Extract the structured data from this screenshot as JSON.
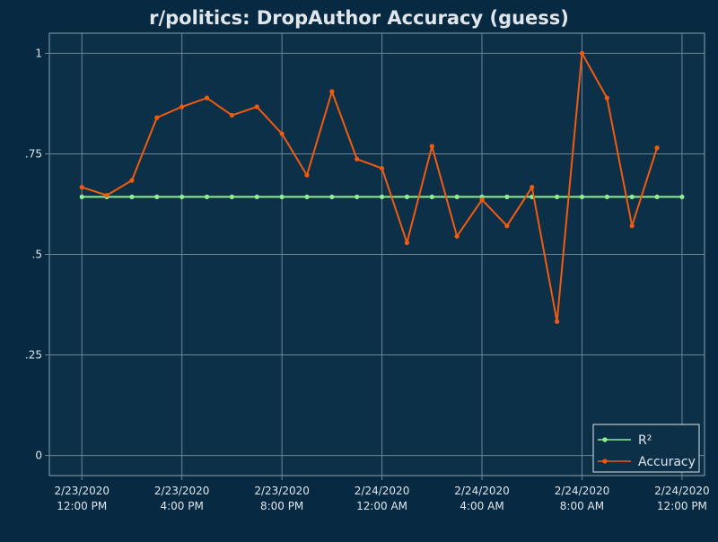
{
  "chart_data": {
    "type": "line",
    "title": "r/politics: DropAuthor Accuracy (guess)",
    "xlabel": "",
    "ylabel": "",
    "x_ticks": [
      {
        "line1": "2/23/2020",
        "line2": "12:00 PM"
      },
      {
        "line1": "2/23/2020",
        "line2": "4:00 PM"
      },
      {
        "line1": "2/23/2020",
        "line2": "8:00 PM"
      },
      {
        "line1": "2/24/2020",
        "line2": "12:00 AM"
      },
      {
        "line1": "2/24/2020",
        "line2": "4:00 AM"
      },
      {
        "line1": "2/24/2020",
        "line2": "8:00 AM"
      },
      {
        "line1": "2/24/2020",
        "line2": "12:00 PM"
      }
    ],
    "y_ticks": [
      "0",
      ".25",
      ".5",
      ".75",
      "1"
    ],
    "y_tick_values": [
      0,
      0.25,
      0.5,
      0.75,
      1
    ],
    "ylim": [
      -0.05,
      1.05
    ],
    "xlim_hours": [
      -1.3,
      24.9
    ],
    "x_hours": [
      0,
      1,
      2,
      3,
      4,
      5,
      6,
      7,
      8,
      9,
      10,
      11,
      12,
      13,
      14,
      15,
      16,
      17,
      18,
      19,
      20,
      21,
      22,
      23,
      24
    ],
    "series": [
      {
        "name": "R²",
        "color": "#90ee90",
        "values": [
          0.643,
          0.643,
          0.643,
          0.643,
          0.643,
          0.643,
          0.643,
          0.643,
          0.643,
          0.643,
          0.643,
          0.643,
          0.643,
          0.643,
          0.643,
          0.643,
          0.643,
          0.643,
          0.643,
          0.643,
          0.643,
          0.643,
          0.643,
          0.643,
          0.643
        ]
      },
      {
        "name": "Accuracy",
        "color": "#f25a0f",
        "values": [
          0.667,
          0.647,
          0.684,
          0.84,
          0.867,
          0.889,
          0.846,
          0.867,
          0.8,
          0.697,
          0.905,
          0.737,
          0.714,
          0.529,
          0.769,
          0.545,
          0.636,
          0.571,
          0.667,
          0.333,
          1.0,
          0.889,
          0.571,
          0.765
        ]
      }
    ],
    "grid": true,
    "legend_position": "bottom-right",
    "colors": {
      "background": "#072a42",
      "plot_background": "#0c3048",
      "grid": "#6f8596",
      "text": "#dfe6ec"
    }
  }
}
